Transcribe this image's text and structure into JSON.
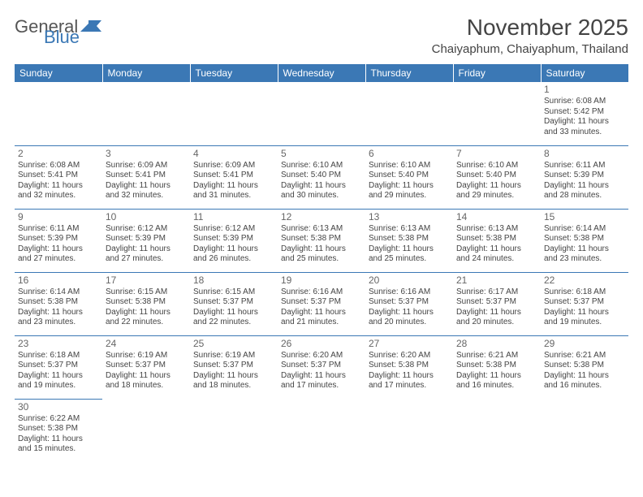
{
  "logo": {
    "text1": "General",
    "text2": "Blue"
  },
  "title": "November 2025",
  "location": "Chaiyaphum, Chaiyaphum, Thailand",
  "header_bg": "#3b78b5",
  "header_fg": "#ffffff",
  "border_color": "#3b78b5",
  "text_color": "#444444",
  "day_headers": [
    "Sunday",
    "Monday",
    "Tuesday",
    "Wednesday",
    "Thursday",
    "Friday",
    "Saturday"
  ],
  "weeks": [
    [
      null,
      null,
      null,
      null,
      null,
      null,
      {
        "n": "1",
        "sr": "Sunrise: 6:08 AM",
        "ss": "Sunset: 5:42 PM",
        "d1": "Daylight: 11 hours",
        "d2": "and 33 minutes."
      }
    ],
    [
      {
        "n": "2",
        "sr": "Sunrise: 6:08 AM",
        "ss": "Sunset: 5:41 PM",
        "d1": "Daylight: 11 hours",
        "d2": "and 32 minutes."
      },
      {
        "n": "3",
        "sr": "Sunrise: 6:09 AM",
        "ss": "Sunset: 5:41 PM",
        "d1": "Daylight: 11 hours",
        "d2": "and 32 minutes."
      },
      {
        "n": "4",
        "sr": "Sunrise: 6:09 AM",
        "ss": "Sunset: 5:41 PM",
        "d1": "Daylight: 11 hours",
        "d2": "and 31 minutes."
      },
      {
        "n": "5",
        "sr": "Sunrise: 6:10 AM",
        "ss": "Sunset: 5:40 PM",
        "d1": "Daylight: 11 hours",
        "d2": "and 30 minutes."
      },
      {
        "n": "6",
        "sr": "Sunrise: 6:10 AM",
        "ss": "Sunset: 5:40 PM",
        "d1": "Daylight: 11 hours",
        "d2": "and 29 minutes."
      },
      {
        "n": "7",
        "sr": "Sunrise: 6:10 AM",
        "ss": "Sunset: 5:40 PM",
        "d1": "Daylight: 11 hours",
        "d2": "and 29 minutes."
      },
      {
        "n": "8",
        "sr": "Sunrise: 6:11 AM",
        "ss": "Sunset: 5:39 PM",
        "d1": "Daylight: 11 hours",
        "d2": "and 28 minutes."
      }
    ],
    [
      {
        "n": "9",
        "sr": "Sunrise: 6:11 AM",
        "ss": "Sunset: 5:39 PM",
        "d1": "Daylight: 11 hours",
        "d2": "and 27 minutes."
      },
      {
        "n": "10",
        "sr": "Sunrise: 6:12 AM",
        "ss": "Sunset: 5:39 PM",
        "d1": "Daylight: 11 hours",
        "d2": "and 27 minutes."
      },
      {
        "n": "11",
        "sr": "Sunrise: 6:12 AM",
        "ss": "Sunset: 5:39 PM",
        "d1": "Daylight: 11 hours",
        "d2": "and 26 minutes."
      },
      {
        "n": "12",
        "sr": "Sunrise: 6:13 AM",
        "ss": "Sunset: 5:38 PM",
        "d1": "Daylight: 11 hours",
        "d2": "and 25 minutes."
      },
      {
        "n": "13",
        "sr": "Sunrise: 6:13 AM",
        "ss": "Sunset: 5:38 PM",
        "d1": "Daylight: 11 hours",
        "d2": "and 25 minutes."
      },
      {
        "n": "14",
        "sr": "Sunrise: 6:13 AM",
        "ss": "Sunset: 5:38 PM",
        "d1": "Daylight: 11 hours",
        "d2": "and 24 minutes."
      },
      {
        "n": "15",
        "sr": "Sunrise: 6:14 AM",
        "ss": "Sunset: 5:38 PM",
        "d1": "Daylight: 11 hours",
        "d2": "and 23 minutes."
      }
    ],
    [
      {
        "n": "16",
        "sr": "Sunrise: 6:14 AM",
        "ss": "Sunset: 5:38 PM",
        "d1": "Daylight: 11 hours",
        "d2": "and 23 minutes."
      },
      {
        "n": "17",
        "sr": "Sunrise: 6:15 AM",
        "ss": "Sunset: 5:38 PM",
        "d1": "Daylight: 11 hours",
        "d2": "and 22 minutes."
      },
      {
        "n": "18",
        "sr": "Sunrise: 6:15 AM",
        "ss": "Sunset: 5:37 PM",
        "d1": "Daylight: 11 hours",
        "d2": "and 22 minutes."
      },
      {
        "n": "19",
        "sr": "Sunrise: 6:16 AM",
        "ss": "Sunset: 5:37 PM",
        "d1": "Daylight: 11 hours",
        "d2": "and 21 minutes."
      },
      {
        "n": "20",
        "sr": "Sunrise: 6:16 AM",
        "ss": "Sunset: 5:37 PM",
        "d1": "Daylight: 11 hours",
        "d2": "and 20 minutes."
      },
      {
        "n": "21",
        "sr": "Sunrise: 6:17 AM",
        "ss": "Sunset: 5:37 PM",
        "d1": "Daylight: 11 hours",
        "d2": "and 20 minutes."
      },
      {
        "n": "22",
        "sr": "Sunrise: 6:18 AM",
        "ss": "Sunset: 5:37 PM",
        "d1": "Daylight: 11 hours",
        "d2": "and 19 minutes."
      }
    ],
    [
      {
        "n": "23",
        "sr": "Sunrise: 6:18 AM",
        "ss": "Sunset: 5:37 PM",
        "d1": "Daylight: 11 hours",
        "d2": "and 19 minutes."
      },
      {
        "n": "24",
        "sr": "Sunrise: 6:19 AM",
        "ss": "Sunset: 5:37 PM",
        "d1": "Daylight: 11 hours",
        "d2": "and 18 minutes."
      },
      {
        "n": "25",
        "sr": "Sunrise: 6:19 AM",
        "ss": "Sunset: 5:37 PM",
        "d1": "Daylight: 11 hours",
        "d2": "and 18 minutes."
      },
      {
        "n": "26",
        "sr": "Sunrise: 6:20 AM",
        "ss": "Sunset: 5:37 PM",
        "d1": "Daylight: 11 hours",
        "d2": "and 17 minutes."
      },
      {
        "n": "27",
        "sr": "Sunrise: 6:20 AM",
        "ss": "Sunset: 5:38 PM",
        "d1": "Daylight: 11 hours",
        "d2": "and 17 minutes."
      },
      {
        "n": "28",
        "sr": "Sunrise: 6:21 AM",
        "ss": "Sunset: 5:38 PM",
        "d1": "Daylight: 11 hours",
        "d2": "and 16 minutes."
      },
      {
        "n": "29",
        "sr": "Sunrise: 6:21 AM",
        "ss": "Sunset: 5:38 PM",
        "d1": "Daylight: 11 hours",
        "d2": "and 16 minutes."
      }
    ],
    [
      {
        "n": "30",
        "sr": "Sunrise: 6:22 AM",
        "ss": "Sunset: 5:38 PM",
        "d1": "Daylight: 11 hours",
        "d2": "and 15 minutes."
      },
      null,
      null,
      null,
      null,
      null,
      null
    ]
  ]
}
